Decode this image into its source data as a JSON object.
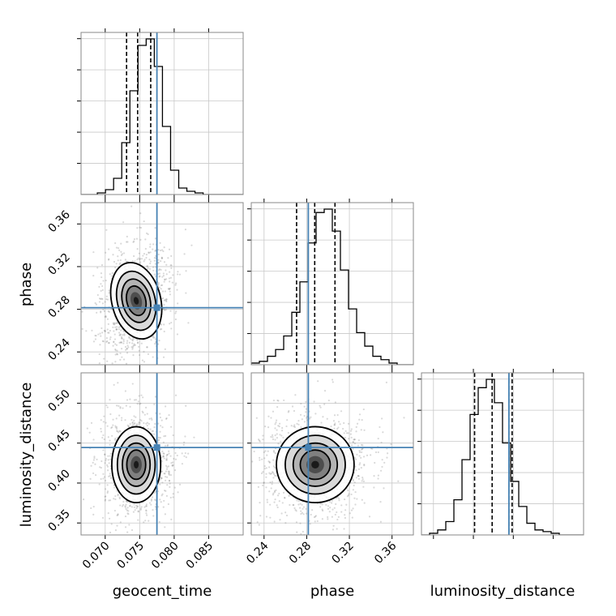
{
  "chart_data": {
    "type": "corner",
    "parameters": [
      "geocent_time",
      "phase",
      "luminosity_distance"
    ],
    "axis_labels": {
      "x": [
        "geocent_time",
        "phase",
        "luminosity_distance"
      ],
      "y": [
        "phase",
        "luminosity_distance"
      ]
    },
    "ranges": {
      "geocent_time": [
        0.0665,
        0.09
      ],
      "phase": [
        0.228,
        0.38
      ],
      "luminosity_distance": [
        0.335,
        0.538
      ]
    },
    "ticks": {
      "geocent_time": [
        "0.070",
        "0.075",
        "0.080",
        "0.085"
      ],
      "phase": [
        "0.24",
        "0.28",
        "0.32",
        "0.36"
      ],
      "luminosity_distance": [
        "0.35",
        "0.40",
        "0.45",
        "0.50"
      ]
    },
    "truths": {
      "geocent_time": 0.0775,
      "phase": 0.2815,
      "luminosity_distance": 0.4445
    },
    "quantiles": {
      "geocent_time": [
        0.0731,
        0.0747,
        0.0766
      ],
      "phase": [
        0.2705,
        0.2875,
        0.3065
      ],
      "luminosity_distance": [
        0.4015,
        0.4235,
        0.4485
      ]
    },
    "modes": {
      "geocent_time": 0.0745,
      "phase": 0.288,
      "luminosity_distance": 0.423
    },
    "histograms": {
      "geocent_time": {
        "bin_start": 0.0665,
        "bin_width": 0.00118,
        "counts": [
          0,
          0,
          1,
          3,
          10,
          32,
          64,
          92,
          96,
          79,
          42,
          15,
          4,
          2,
          1,
          0,
          0,
          0,
          0,
          0
        ]
      },
      "phase": {
        "bin_start": 0.228,
        "bin_width": 0.0076,
        "counts": [
          1,
          2,
          5,
          9,
          17,
          31,
          49,
          72,
          90,
          92,
          79,
          56,
          33,
          19,
          11,
          5,
          3,
          1,
          0,
          0
        ]
      },
      "luminosity_distance": {
        "bin_start": 0.335,
        "bin_width": 0.01015,
        "counts": [
          0,
          1,
          3,
          8,
          21,
          45,
          72,
          88,
          93,
          79,
          55,
          32,
          17,
          7,
          3,
          2,
          1,
          0,
          0,
          0
        ]
      }
    },
    "grid": true,
    "truth_color": "#4682b4"
  }
}
